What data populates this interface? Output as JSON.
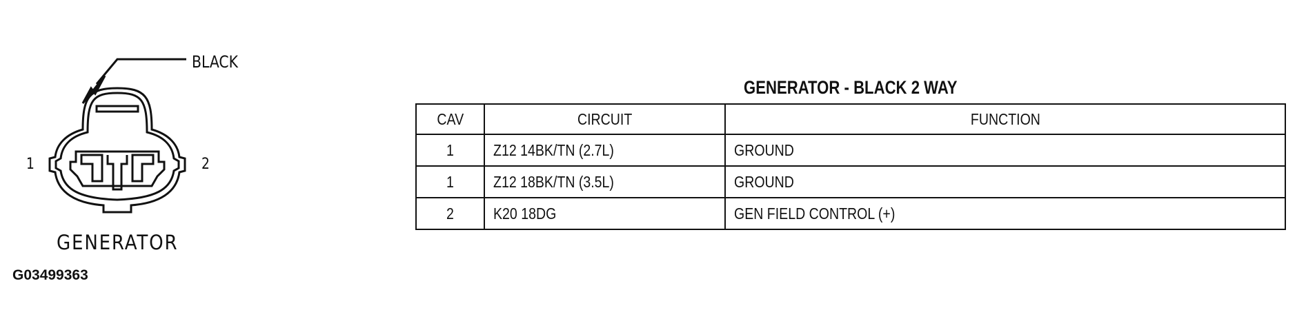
{
  "diagram": {
    "color_label": "BLACK",
    "pin_labels": [
      "1",
      "2"
    ],
    "connector_label": "GENERATOR",
    "figure_id": "G03499363"
  },
  "table": {
    "title": "GENERATOR - BLACK 2 WAY",
    "headers": [
      "CAV",
      "CIRCUIT",
      "FUNCTION"
    ],
    "rows": [
      {
        "cav": "1",
        "circuit": "Z12 14BK/TN (2.7L)",
        "function": "GROUND"
      },
      {
        "cav": "1",
        "circuit": "Z12 18BK/TN (3.5L)",
        "function": "GROUND"
      },
      {
        "cav": "2",
        "circuit": "K20 18DG",
        "function": "GEN FIELD CONTROL (+)"
      }
    ]
  }
}
